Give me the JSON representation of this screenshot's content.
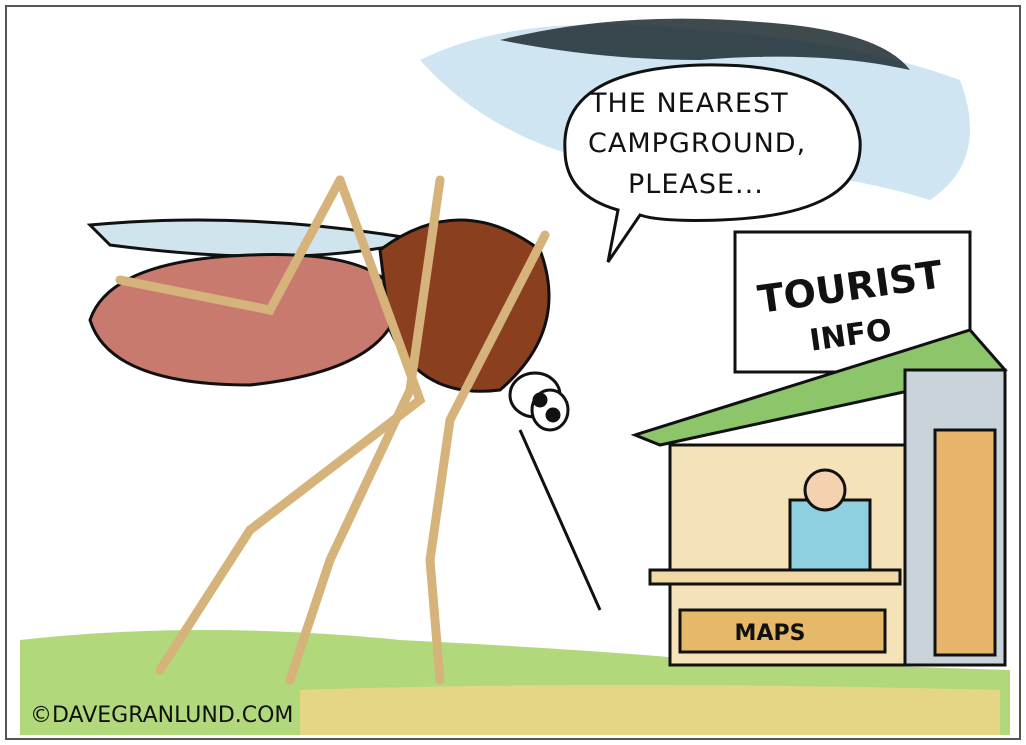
{
  "speech_bubble": {
    "lines": [
      "THE NEAREST",
      "CAMPGROUND,",
      "PLEASE..."
    ]
  },
  "sign": {
    "lines": [
      "TOURIST",
      "INFO"
    ]
  },
  "counter_label": "MAPS",
  "credit": "©DAVEGRANLUND.COM"
}
